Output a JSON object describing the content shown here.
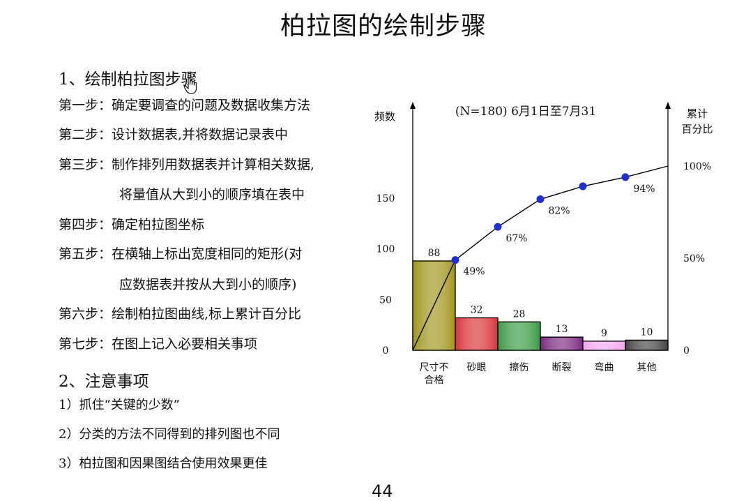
{
  "title": "柏拉图的绘制步骤",
  "section1": {
    "heading": "1、绘制柏拉图步骤",
    "steps": [
      {
        "label": "第一步：",
        "text": "确定要调查的问题及数据收集方法"
      },
      {
        "label": "第二步：",
        "text": "设计数据表,并将数据记录表中"
      },
      {
        "label": "第三步：",
        "text": "制作排列用数据表并计算相关数据,",
        "cont": "将量值从大到小的顺序填在表中"
      },
      {
        "label": "第四步：",
        "text": "确定柏拉图坐标"
      },
      {
        "label": "第五步：",
        "text": "在横轴上标出宽度相同的矩形(对",
        "cont": "应数据表并按从大到小的顺序)"
      },
      {
        "label": "第六步：",
        "text": "绘制柏拉图曲线,标上累计百分比"
      },
      {
        "label": "第七步：",
        "text": "在图上记入必要相关事项"
      }
    ]
  },
  "section2": {
    "heading": "2、注意事项",
    "notes": [
      "1）抓住“关键的少数”",
      "2）分类的方法不同得到的排列图也不同",
      "3）柏拉图和因果图结合使用效果更佳"
    ]
  },
  "page_number": "44",
  "chart_data": {
    "type": "bar",
    "title": "(N=180) 6月1日至7月31",
    "ylabel": "频数",
    "y2label": [
      "累计",
      "百分比"
    ],
    "categories": [
      [
        "尺寸不",
        "合格"
      ],
      [
        "砂眼"
      ],
      [
        "擦伤"
      ],
      [
        "断裂"
      ],
      [
        "弯曲"
      ],
      [
        "其他"
      ]
    ],
    "values": [
      88,
      32,
      28,
      13,
      9,
      10
    ],
    "ylim": [
      0,
      180
    ],
    "yticks": [
      "0",
      "50",
      "100",
      "150"
    ],
    "y2lim": [
      0,
      100
    ],
    "y2ticks": [
      "0",
      "50%",
      "100%"
    ],
    "cumulative_percent": [
      49,
      67,
      82,
      89,
      94,
      100
    ],
    "cumulative_labels": [
      "49%",
      "67%",
      "82%",
      "",
      "94%",
      ""
    ],
    "bar_colors": [
      "#a0961c",
      "#d8353b",
      "#3a9a44",
      "#7a2a80",
      "#f2a8f0",
      "#444444"
    ],
    "point_color": "#1f2fd6"
  }
}
